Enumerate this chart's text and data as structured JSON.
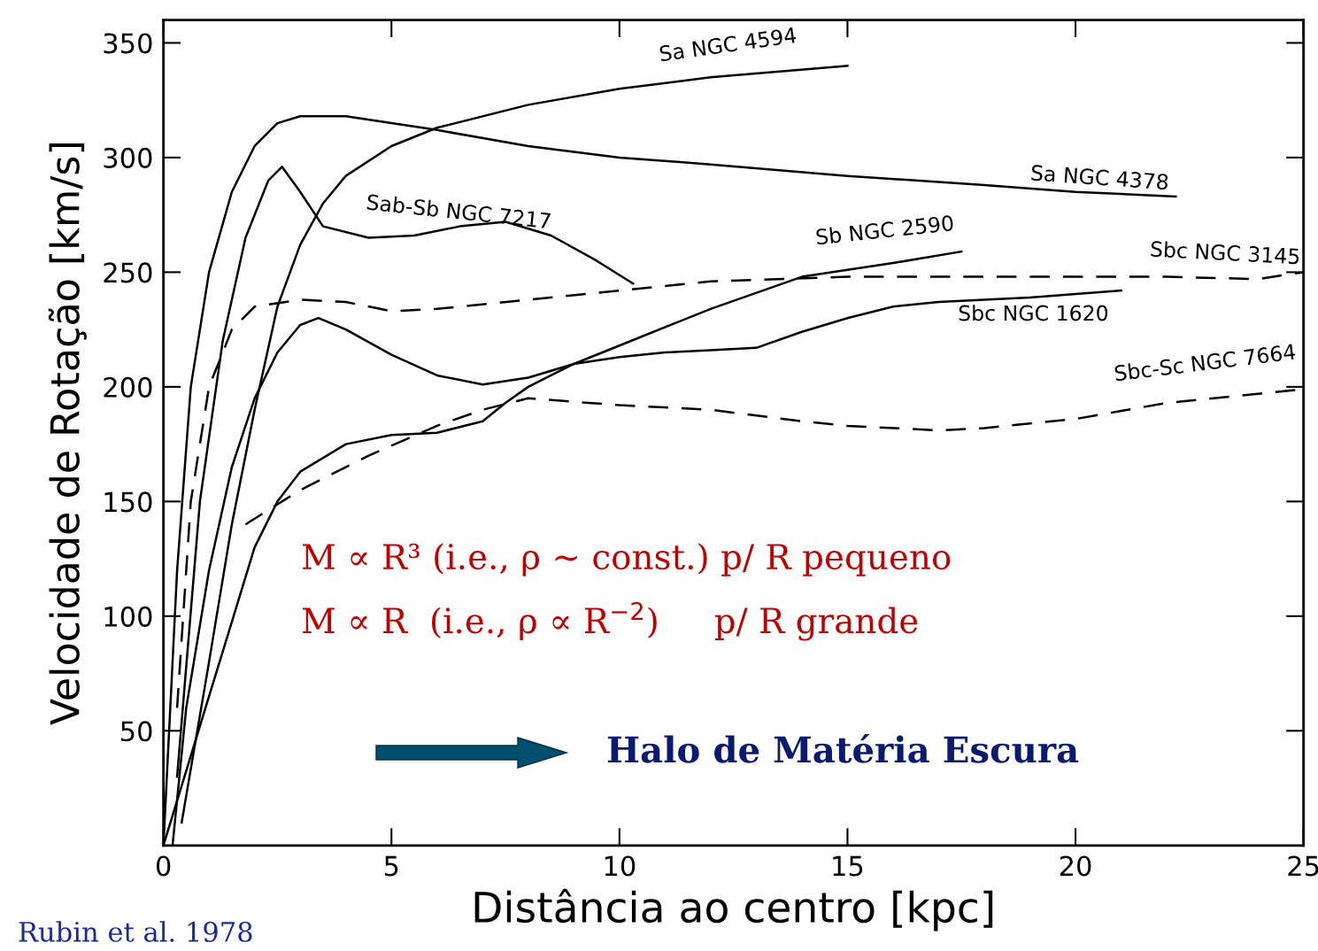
{
  "chart_data": {
    "type": "line",
    "xlabel": "Distância ao centro [kpc]",
    "ylabel": "Velocidade de Rotação [km/s]",
    "xlim": [
      0,
      25
    ],
    "xticks": [
      0,
      5,
      10,
      15,
      20,
      25
    ],
    "ylim": [
      0,
      360
    ],
    "yticks": [
      50,
      100,
      150,
      200,
      250,
      300,
      350
    ],
    "grid": false,
    "legend": false,
    "series": [
      {
        "name": "Sa NGC 4594",
        "color": "#000000",
        "line_style": "solid",
        "x": [
          0.4,
          1,
          1.5,
          2,
          2.5,
          3,
          3.5,
          4,
          5,
          6,
          8,
          10,
          12,
          15
        ],
        "values": [
          10,
          80,
          140,
          190,
          235,
          262,
          280,
          292,
          305,
          313,
          323,
          330,
          335,
          340
        ]
      },
      {
        "name": "Sa NGC 4378",
        "color": "#000000",
        "line_style": "solid",
        "x": [
          0,
          0.3,
          0.6,
          1,
          1.5,
          2,
          2.5,
          3,
          4,
          6,
          8,
          10,
          12,
          15,
          18,
          20,
          22.2
        ],
        "values": [
          0,
          120,
          200,
          250,
          285,
          305,
          315,
          318,
          318,
          312,
          305,
          300,
          297,
          292,
          288,
          285,
          283
        ]
      },
      {
        "name": "Sab-Sb NGC 7217",
        "color": "#000000",
        "line_style": "solid",
        "x": [
          0.3,
          0.8,
          1.3,
          1.8,
          2.3,
          2.6,
          3,
          3.5,
          4.5,
          5.5,
          6.5,
          7.5,
          8.5,
          9.5,
          10.3
        ],
        "values": [
          30,
          150,
          220,
          265,
          290,
          296,
          285,
          270,
          265,
          266,
          270,
          272,
          266,
          255,
          245
        ]
      },
      {
        "name": "Sb NGC 2590",
        "color": "#000000",
        "line_style": "solid",
        "x": [
          0,
          1,
          2,
          2.5,
          3,
          4,
          5,
          6,
          7,
          7.5,
          8,
          9,
          10,
          12,
          14,
          16,
          17.5
        ],
        "values": [
          0,
          65,
          130,
          150,
          163,
          175,
          179,
          180,
          185,
          193,
          200,
          210,
          218,
          234,
          248,
          254,
          259
        ]
      },
      {
        "name": "Sbc NGC 3145",
        "color": "#000000",
        "line_style": "dashed",
        "x": [
          0.3,
          0.6,
          1,
          1.5,
          2,
          3,
          4,
          5,
          6,
          8,
          10,
          12,
          15,
          18,
          20,
          22,
          24,
          25
        ],
        "values": [
          60,
          150,
          200,
          225,
          235,
          238,
          237,
          233,
          234,
          238,
          242,
          246,
          248,
          248,
          248,
          248,
          247,
          250
        ]
      },
      {
        "name": "Sbc NGC 1620",
        "color": "#000000",
        "line_style": "solid",
        "x": [
          0.2,
          0.5,
          1,
          1.5,
          2,
          2.5,
          3,
          3.4,
          4,
          5,
          6,
          7,
          8,
          9,
          10,
          11,
          12,
          13,
          14,
          15,
          16,
          17,
          19,
          21
        ],
        "values": [
          0,
          60,
          120,
          165,
          195,
          215,
          227,
          230,
          225,
          214,
          205,
          201,
          204,
          210,
          213,
          215,
          216,
          217,
          224,
          230,
          235,
          237,
          239,
          242
        ]
      },
      {
        "name": "Sbc-Sc NGC 7664",
        "color": "#000000",
        "line_style": "dashed",
        "x": [
          1.8,
          3,
          4.5,
          6,
          7,
          8,
          10,
          12,
          14,
          15,
          17,
          18,
          20,
          22,
          24,
          25
        ],
        "values": [
          140,
          155,
          170,
          183,
          190,
          195,
          192,
          190,
          185,
          183,
          181,
          182,
          186,
          193,
          197,
          199
        ]
      }
    ],
    "annotations": [
      "M ∝ R³ (i.e., ρ ~ const.) p/ R pequeno",
      "M ∝ R  (i.e., ρ ∝ R$^{−2}$)     p/ R grande",
      "Halo de Matéria Escura",
      "Rubin et al. 1978"
    ]
  }
}
